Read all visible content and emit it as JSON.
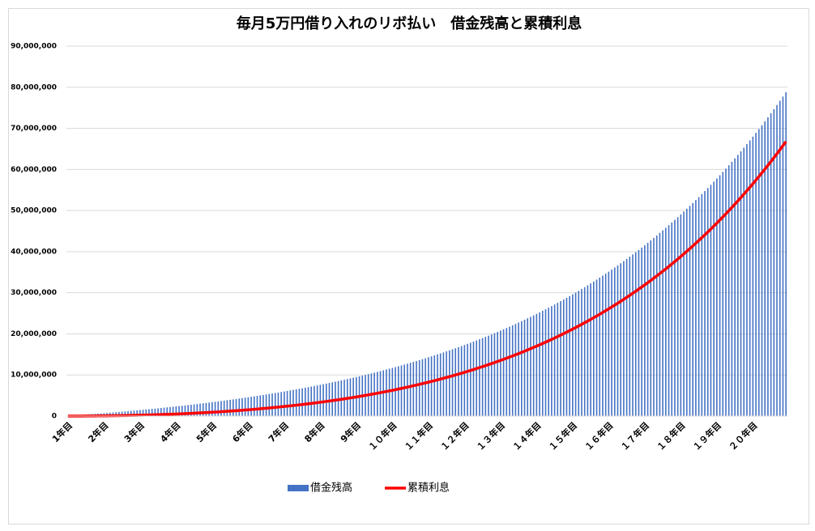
{
  "chart_data": {
    "type": "bar",
    "title": "毎月5万円借り入れのリボ払い　借金残高と累積利息",
    "categories": [
      "1年目",
      null,
      null,
      null,
      null,
      null,
      null,
      null,
      null,
      null,
      null,
      null,
      "2年目",
      null,
      null,
      null,
      null,
      null,
      null,
      null,
      null,
      null,
      null,
      null,
      "3年目",
      null,
      null,
      null,
      null,
      null,
      null,
      null,
      null,
      null,
      null,
      null,
      "4年目",
      null,
      null,
      null,
      null,
      null,
      null,
      null,
      null,
      null,
      null,
      null,
      "5年目",
      null,
      null,
      null,
      null,
      null,
      null,
      null,
      null,
      null,
      null,
      null,
      "6年目",
      null,
      null,
      null,
      null,
      null,
      null,
      null,
      null,
      null,
      null,
      null,
      "7年目",
      null,
      null,
      null,
      null,
      null,
      null,
      null,
      null,
      null,
      null,
      null,
      "8年目",
      null,
      null,
      null,
      null,
      null,
      null,
      null,
      null,
      null,
      null,
      null,
      "9年目",
      null,
      null,
      null,
      null,
      null,
      null,
      null,
      null,
      null,
      null,
      null,
      "１０年目",
      null,
      null,
      null,
      null,
      null,
      null,
      null,
      null,
      null,
      null,
      null,
      "１１年目",
      null,
      null,
      null,
      null,
      null,
      null,
      null,
      null,
      null,
      null,
      null,
      "１２年目",
      null,
      null,
      null,
      null,
      null,
      null,
      null,
      null,
      null,
      null,
      null,
      "１３年目",
      null,
      null,
      null,
      null,
      null,
      null,
      null,
      null,
      null,
      null,
      null,
      "１４年目",
      null,
      null,
      null,
      null,
      null,
      null,
      null,
      null,
      null,
      null,
      null,
      "１５年目",
      null,
      null,
      null,
      null,
      null,
      null,
      null,
      null,
      null,
      null,
      null,
      "１６年目",
      null,
      null,
      null,
      null,
      null,
      null,
      null,
      null,
      null,
      null,
      null,
      "１７年目",
      null,
      null,
      null,
      null,
      null,
      null,
      null,
      null,
      null,
      null,
      null,
      "１８年目",
      null,
      null,
      null,
      null,
      null,
      null,
      null,
      null,
      null,
      null,
      null,
      "１９年目",
      null,
      null,
      null,
      null,
      null,
      null,
      null,
      null,
      null,
      null,
      null,
      "２０年目",
      null,
      null,
      null,
      null,
      null,
      null,
      null,
      null,
      null,
      null,
      null
    ],
    "series": [
      {
        "name": "借金残高",
        "type": "bar",
        "color": "#4472c4",
        "values": [
          50000,
          101000,
          152000,
          204000,
          256000,
          310000,
          364000,
          418000,
          474000,
          530000,
          587000,
          644000,
          702000,
          761000,
          821000,
          882000,
          943000,
          1005000,
          1068000,
          1131000,
          1196000,
          1261000,
          1327000,
          1394000,
          1462000,
          1531000,
          1600000,
          1671000,
          1742000,
          1815000,
          1888000,
          1962000,
          2037000,
          2113000,
          2190000,
          2268000,
          2347000,
          2427000,
          2508000,
          2591000,
          2674000,
          2758000,
          2843000,
          2930000,
          3017000,
          3106000,
          3195000,
          3286000,
          3378000,
          3472000,
          3566000,
          3662000,
          3759000,
          3857000,
          3956000,
          4057000,
          4159000,
          4262000,
          4366000,
          4472000,
          4579000,
          4688000,
          4798000,
          4910000,
          5022000,
          5137000,
          5252000,
          5370000,
          5488000,
          5609000,
          5730000,
          5854000,
          5979000,
          6105000,
          6233000,
          6363000,
          6495000,
          6628000,
          6762000,
          6899000,
          7037000,
          7177000,
          7319000,
          7463000,
          7608000,
          7756000,
          7905000,
          8056000,
          8209000,
          8364000,
          8521000,
          8681000,
          8842000,
          9005000,
          9170000,
          9337000,
          9507000,
          9679000,
          9852000,
          10029000,
          10207000,
          10388000,
          10571000,
          10756000,
          10943000,
          11134000,
          11326000,
          11521000,
          11719000,
          11918000,
          12121000,
          12326000,
          12534000,
          12744000,
          12957000,
          13173000,
          13392000,
          13613000,
          13838000,
          14065000,
          14295000,
          14528000,
          14764000,
          15003000,
          15245000,
          15490000,
          15738000,
          15989000,
          16244000,
          16502000,
          16763000,
          17028000,
          17296000,
          17567000,
          17842000,
          18120000,
          18402000,
          18688000,
          18977000,
          19270000,
          19566000,
          19867000,
          20171000,
          20479000,
          20792000,
          21108000,
          21428000,
          21752000,
          22081000,
          22413000,
          22750000,
          23091000,
          23437000,
          23787000,
          24141000,
          24500000,
          24864000,
          25232000,
          25605000,
          25983000,
          26365000,
          26753000,
          27145000,
          27542000,
          27945000,
          28353000,
          28766000,
          29184000,
          29607000,
          30036000,
          30471000,
          30911000,
          31357000,
          31808000,
          32265000,
          32728000,
          33197000,
          33672000,
          34153000,
          34640000,
          35133000,
          35633000,
          36139000,
          36651000,
          37171000,
          37696000,
          38229000,
          38768000,
          39314000,
          39868000,
          40428000,
          40995000,
          41570000,
          42152000,
          42741000,
          43339000,
          43943000,
          44556000,
          45176000,
          45804000,
          46440000,
          47085000,
          47738000,
          48399000,
          49068000,
          49746000,
          50433000,
          51128000,
          51833000,
          52546000,
          53269000,
          54000000,
          54742000,
          55493000,
          56253000,
          57023000,
          57802000,
          58592000,
          59392000,
          60202000,
          61023000,
          61854000,
          62696000,
          63548000,
          64411000,
          65286000,
          66172000,
          67068000,
          67977000,
          68897000,
          69829000,
          70773000,
          71729000,
          72697000,
          73677000,
          74670000,
          75675000,
          76695000,
          77726000,
          78771000
        ]
      },
      {
        "name": "累積利息",
        "type": "line",
        "color": "#ff0000",
        "values": [
          0,
          1000,
          2000,
          4000,
          6000,
          10000,
          14000,
          18000,
          24000,
          30000,
          37000,
          44000,
          52000,
          61000,
          71000,
          82000,
          93000,
          105000,
          118000,
          131000,
          146000,
          161000,
          177000,
          194000,
          212000,
          231000,
          250000,
          271000,
          292000,
          315000,
          338000,
          362000,
          387000,
          413000,
          440000,
          468000,
          497000,
          527000,
          558000,
          591000,
          624000,
          658000,
          693000,
          730000,
          767000,
          806000,
          845000,
          886000,
          928000,
          972000,
          1016000,
          1062000,
          1109000,
          1157000,
          1206000,
          1257000,
          1309000,
          1362000,
          1416000,
          1472000,
          1529000,
          1588000,
          1648000,
          1710000,
          1772000,
          1837000,
          1902000,
          1970000,
          2038000,
          2109000,
          2180000,
          2254000,
          2329000,
          2405000,
          2483000,
          2563000,
          2645000,
          2728000,
          2812000,
          2899000,
          2987000,
          3077000,
          3169000,
          3263000,
          3358000,
          3456000,
          3555000,
          3656000,
          3759000,
          3864000,
          3971000,
          4081000,
          4192000,
          4305000,
          4420000,
          4537000,
          4657000,
          4779000,
          4902000,
          5029000,
          5157000,
          5288000,
          5421000,
          5556000,
          5693000,
          5834000,
          5976000,
          6121000,
          6269000,
          6418000,
          6571000,
          6726000,
          6884000,
          7044000,
          7207000,
          7373000,
          7542000,
          7713000,
          7888000,
          8065000,
          8245000,
          8428000,
          8614000,
          8803000,
          8995000,
          9190000,
          9388000,
          9589000,
          9794000,
          10002000,
          10213000,
          10428000,
          10646000,
          10867000,
          11092000,
          11320000,
          11552000,
          11788000,
          12027000,
          12270000,
          12516000,
          12767000,
          13021000,
          13279000,
          13542000,
          13808000,
          14078000,
          14352000,
          14631000,
          14913000,
          15200000,
          15491000,
          15787000,
          16087000,
          16391000,
          16700000,
          17014000,
          17332000,
          17655000,
          17983000,
          18315000,
          18653000,
          18995000,
          19342000,
          19695000,
          20053000,
          20416000,
          20784000,
          21157000,
          21536000,
          21921000,
          22311000,
          22707000,
          23108000,
          23515000,
          23928000,
          24347000,
          24772000,
          25203000,
          25640000,
          26083000,
          26533000,
          26989000,
          27451000,
          27921000,
          28396000,
          28879000,
          29368000,
          29864000,
          30368000,
          30878000,
          31395000,
          31920000,
          32452000,
          32991000,
          33539000,
          34093000,
          34656000,
          35226000,
          35804000,
          36390000,
          36985000,
          37588000,
          38199000,
          38818000,
          39446000,
          40083000,
          40728000,
          41383000,
          42046000,
          42719000,
          43400000,
          44092000,
          44793000,
          45503000,
          46223000,
          46952000,
          47692000,
          48442000,
          49202000,
          49973000,
          50754000,
          51546000,
          52348000,
          53161000,
          53986000,
          54822000,
          55668000,
          56527000,
          57397000,
          58279000,
          59173000,
          60079000,
          60997000,
          61927000,
          62870000,
          63825000,
          64795000,
          65776000,
          66771000
        ]
      }
    ],
    "ylim": [
      0,
      90000000
    ],
    "yticks": [
      0,
      {
        "value": 10000000,
        "label": "10,000,000"
      },
      {
        "value": 20000000,
        "label": "20,000,000"
      },
      {
        "value": 30000000,
        "label": "30,000,000"
      },
      {
        "value": 40000000,
        "label": "40,000,000"
      },
      {
        "value": 50000000,
        "label": "50,000,000"
      },
      {
        "value": 60000000,
        "label": "60,000,000"
      },
      {
        "value": 70000000,
        "label": "70,000,000"
      },
      {
        "value": 80000000,
        "label": "80,000,000"
      },
      {
        "value": 90000000,
        "label": "90,000,000"
      }
    ],
    "grid": true,
    "legend": "bottom"
  }
}
